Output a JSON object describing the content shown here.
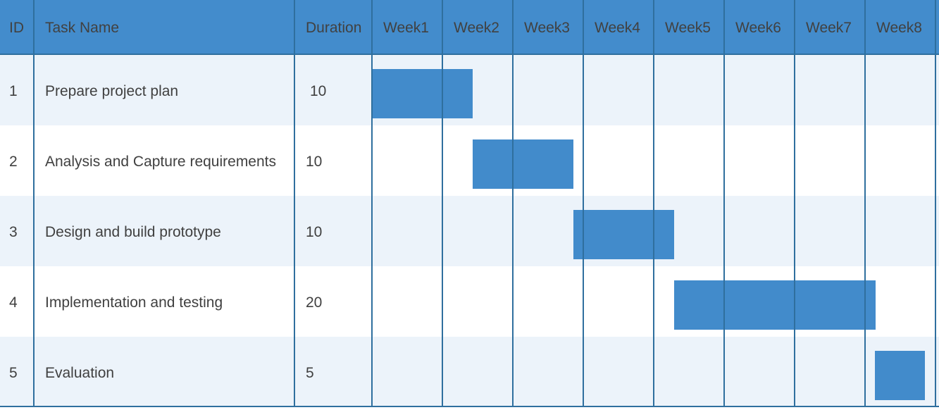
{
  "chart_data": {
    "type": "table",
    "columns": {
      "id": "ID",
      "task": "Task Name",
      "duration": "Duration",
      "weeks": [
        "Week1",
        "Week2",
        "Week3",
        "Week4",
        "Week5",
        "Week6",
        "Week7",
        "Week8"
      ]
    },
    "tasks": [
      {
        "id": "1",
        "name": "Prepare project plan",
        "duration": "10",
        "start_day": 0,
        "days": 10
      },
      {
        "id": "2",
        "name": "Analysis and Capture requirements",
        "duration": "10",
        "start_day": 10,
        "days": 10
      },
      {
        "id": "3",
        "name": "Design and build prototype",
        "duration": "10",
        "start_day": 20,
        "days": 10
      },
      {
        "id": "4",
        "name": "Implementation and testing",
        "duration": "20",
        "start_day": 30,
        "days": 20
      },
      {
        "id": "5",
        "name": "Evaluation",
        "duration": "5",
        "start_day": 50,
        "days": 5
      }
    ],
    "days_per_week": 7,
    "colors": {
      "header": "#438ccc",
      "bar": "#428bcb",
      "row_alt": "#ecf3fa",
      "grid": "#2f6f9e"
    }
  }
}
